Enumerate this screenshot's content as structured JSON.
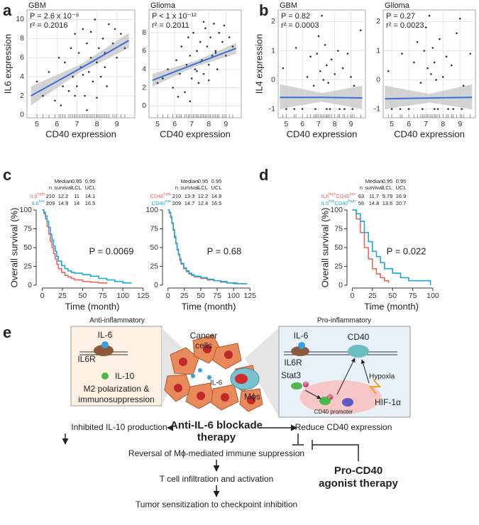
{
  "chart_data": [
    {
      "type": "scatter",
      "panel_label": "a",
      "title": "GBM",
      "x_label": "CD40 expression",
      "y_label": "IL6 expression",
      "annotations": [
        "P = 2.6 x 10⁻⁹",
        "r² = 0.2016"
      ],
      "x": [
        5.0,
        5.3,
        5.6,
        5.9,
        6.1,
        6.3,
        6.4,
        6.6,
        6.7,
        6.8,
        6.9,
        7.0,
        7.1,
        7.2,
        7.3,
        7.4,
        7.5,
        7.6,
        7.7,
        7.8,
        7.9,
        8.0,
        8.1,
        8.2,
        8.3,
        8.4,
        8.5,
        8.6,
        8.8,
        9.0,
        9.2,
        9.4,
        6.2,
        6.9,
        7.3,
        7.7,
        8.0,
        8.4,
        8.9,
        7.5
      ],
      "values": [
        3.5,
        2.0,
        4.5,
        1.5,
        6.0,
        3.0,
        5.5,
        2.5,
        7.0,
        4.0,
        8.5,
        3.0,
        6.5,
        5.0,
        9.0,
        2.0,
        7.5,
        4.5,
        6.0,
        3.5,
        10.0,
        5.5,
        7.0,
        4.0,
        8.0,
        6.5,
        3.0,
        9.5,
        7.5,
        6.0,
        8.5,
        7.0,
        1.0,
        2.0,
        4.2,
        8.7,
        1.8,
        5.0,
        9.0,
        0.5
      ],
      "color": "#333333",
      "fit": {
        "x": [
          4.7,
          7.2,
          9.6
        ],
        "values": [
          2.0,
          4.9,
          7.8
        ],
        "lower": [
          1.0,
          4.5,
          7.0
        ],
        "upper": [
          3.0,
          5.3,
          8.6
        ],
        "color": "#3a6fd8",
        "band_color": "#c4c4c4"
      },
      "xlim": [
        4.5,
        9.9
      ],
      "xticks": [
        5,
        6,
        7,
        8,
        9
      ],
      "ylim": [
        -0.3,
        11
      ],
      "yticks": [
        0,
        2,
        4,
        6,
        8,
        10
      ],
      "grid": true
    },
    {
      "type": "scatter",
      "title": "Glioma",
      "x_label": "CD40 expression",
      "annotations": [
        "P < 1 x 10⁻¹²",
        "r² = 0.2011"
      ],
      "x": [
        5.0,
        5.3,
        5.6,
        5.9,
        6.1,
        6.3,
        6.4,
        6.6,
        6.7,
        6.8,
        6.9,
        7.0,
        7.1,
        7.2,
        7.3,
        7.4,
        7.5,
        7.6,
        7.7,
        7.8,
        7.9,
        8.0,
        8.1,
        8.2,
        8.3,
        8.4,
        8.5,
        8.6,
        8.8,
        9.0,
        9.2,
        9.4,
        6.2,
        6.9,
        7.3,
        7.7,
        8.0,
        8.4,
        8.9,
        7.5
      ],
      "values": [
        2.5,
        3.0,
        4.0,
        2.0,
        5.0,
        3.5,
        6.5,
        1.5,
        4.5,
        7.5,
        5.5,
        3.0,
        8.0,
        4.0,
        6.0,
        2.5,
        7.0,
        5.0,
        3.5,
        8.5,
        6.5,
        4.5,
        7.5,
        5.5,
        9.0,
        6.0,
        4.0,
        8.0,
        7.0,
        5.5,
        7.5,
        6.5,
        1.0,
        0.5,
        3.8,
        9.2,
        2.8,
        5.8,
        8.8,
        4.8
      ],
      "color": "#333333",
      "fit": {
        "x": [
          4.7,
          7.2,
          9.6
        ],
        "values": [
          2.8,
          4.6,
          6.3
        ],
        "lower": [
          2.1,
          4.3,
          5.7
        ],
        "upper": [
          3.5,
          4.9,
          6.9
        ],
        "color": "#3a6fd8",
        "band_color": "#c4c4c4"
      },
      "xlim": [
        4.5,
        9.9
      ],
      "xticks": [
        5,
        6,
        7,
        8,
        9
      ],
      "ylim": [
        -1.3,
        10.5
      ],
      "yticks": [
        0,
        2,
        4,
        6,
        8
      ],
      "grid": true
    },
    {
      "type": "scatter",
      "panel_label": "b",
      "title": "GBM",
      "x_label": "CD40 expression",
      "y_label": "IL4 expression",
      "annotations": [
        "P = 0.82",
        "r² = 0.0003"
      ],
      "x": [
        4.8,
        5.6,
        6.3,
        6.5,
        6.7,
        6.9,
        7.0,
        7.1,
        7.2,
        7.3,
        7.4,
        7.5,
        7.6,
        7.8,
        8.0,
        8.2,
        8.5,
        8.8,
        9.0,
        9.2,
        9.6,
        5.0,
        6.0,
        6.8,
        7.5,
        8.3,
        9.1,
        5.5,
        7.7,
        8.6
      ],
      "values": [
        0.4,
        1.1,
        0.1,
        0.8,
        -0.2,
        0.9,
        1.5,
        0.3,
        2.2,
        0.0,
        1.2,
        0.5,
        -0.1,
        0.7,
        0.2,
        1.0,
        0.4,
        0.9,
        0.1,
        -0.2,
        1.7,
        -1,
        -1,
        -1,
        -1,
        -1,
        -1,
        -1,
        -1,
        -1
      ],
      "color": "#333333",
      "fit": {
        "x": [
          4.6,
          7.2,
          9.7
        ],
        "values": [
          -0.6,
          -0.6,
          -0.62
        ],
        "lower": [
          -1.0,
          -0.75,
          -1.0
        ],
        "upper": [
          -0.15,
          -0.45,
          -0.2
        ],
        "color": "#3a6fd8",
        "band_color": "#c4c4c4"
      },
      "xlim": [
        4.5,
        9.9
      ],
      "xticks": [
        5,
        6,
        7,
        8,
        9
      ],
      "ylim": [
        -1.3,
        2.4
      ],
      "yticks": [
        -1,
        0,
        1,
        2
      ],
      "grid": true
    },
    {
      "type": "scatter",
      "title": "Glioma",
      "x_label": "CD40 expression",
      "annotations": [
        "P = 0.27",
        "r² = 0.0023"
      ],
      "x": [
        4.8,
        5.6,
        6.3,
        6.5,
        6.7,
        6.9,
        7.0,
        7.1,
        7.2,
        7.3,
        7.4,
        7.5,
        7.6,
        7.8,
        8.0,
        8.2,
        8.5,
        8.8,
        9.0,
        9.2,
        9.6,
        5.0,
        6.0,
        6.8,
        7.5,
        8.3,
        9.1,
        5.5,
        7.7,
        8.6
      ],
      "values": [
        0.3,
        0.9,
        0.6,
        1.3,
        -0.1,
        1.0,
        1.8,
        0.4,
        2.2,
        0.2,
        1.1,
        0.6,
        0.0,
        1.4,
        0.1,
        0.8,
        0.5,
        1.6,
        2.1,
        -0.2,
        0.9,
        -1,
        -1,
        -1,
        -1,
        -1,
        -1,
        -1,
        -1,
        -1
      ],
      "color": "#333333",
      "fit": {
        "x": [
          4.6,
          7.2,
          9.7
        ],
        "values": [
          -0.65,
          -0.62,
          -0.6
        ],
        "lower": [
          -1.0,
          -0.78,
          -1.0
        ],
        "upper": [
          -0.2,
          -0.48,
          -0.15
        ],
        "color": "#3a6fd8",
        "band_color": "#c4c4c4"
      },
      "xlim": [
        4.5,
        9.9
      ],
      "xticks": [
        5,
        6,
        7,
        8,
        9
      ],
      "ylim": [
        -1.3,
        2.4
      ],
      "yticks": [
        -1,
        0,
        1,
        2
      ],
      "grid": true
    },
    {
      "type": "km",
      "panel_label": "c",
      "x_label": "Time (month)",
      "y_label": "Overall survival (%)",
      "annotation": "P = 0.0069",
      "columns": [
        [
          "n"
        ],
        [
          "Median",
          "survival"
        ],
        [
          "0.95",
          "LCL"
        ],
        [
          "0.95",
          "UCL"
        ]
      ],
      "series": [
        {
          "name": [
            {
              "text": "IL6"
            },
            {
              "text": "high",
              "sup": true
            }
          ],
          "color": "#f0645a",
          "stats": [
            210,
            12.2,
            11,
            14.1
          ],
          "x": [
            0,
            2,
            4,
            6,
            8,
            10,
            12,
            14,
            16,
            18,
            20,
            24,
            28,
            32,
            36,
            40,
            50,
            60,
            70,
            80
          ],
          "values": [
            100,
            95,
            88,
            78,
            68,
            58,
            50,
            42,
            35,
            28,
            22,
            17,
            13,
            11,
            9,
            7,
            5,
            4,
            3,
            2
          ]
        },
        {
          "name": [
            {
              "text": "IL6"
            },
            {
              "text": "low",
              "sup": true
            }
          ],
          "color": "#1aa9dc",
          "stats": [
            209,
            14.9,
            14,
            16.5
          ],
          "x": [
            0,
            2,
            4,
            6,
            8,
            10,
            12,
            14,
            16,
            18,
            20,
            24,
            28,
            32,
            36,
            40,
            50,
            60,
            70,
            80,
            90,
            100,
            110
          ],
          "values": [
            100,
            97,
            92,
            85,
            77,
            68,
            60,
            52,
            45,
            38,
            32,
            26,
            22,
            19,
            17,
            16,
            14,
            12,
            9,
            7,
            5,
            3,
            2
          ]
        }
      ],
      "xlim": [
        -4,
        128
      ],
      "xticks": [
        0,
        25,
        50,
        75,
        100,
        125
      ],
      "ylim": [
        0,
        100
      ],
      "yticks": [
        0,
        25,
        50,
        75,
        100
      ]
    },
    {
      "type": "km",
      "x_label": "Time (month)",
      "annotation": "P = 0.68",
      "columns": [
        [
          "n"
        ],
        [
          "Median",
          "survival"
        ],
        [
          "0.95",
          "LCL"
        ],
        [
          "0.95",
          "UCL"
        ]
      ],
      "series": [
        {
          "name": [
            {
              "text": "CD40"
            },
            {
              "text": "high",
              "sup": true
            }
          ],
          "color": "#f0645a",
          "stats": [
            210,
            13.3,
            12.2,
            14.8
          ],
          "x": [
            0,
            2,
            4,
            6,
            8,
            10,
            12,
            14,
            16,
            18,
            20,
            24,
            28,
            32,
            36,
            40,
            50,
            60,
            70,
            80,
            90,
            100,
            115
          ],
          "values": [
            100,
            96,
            90,
            82,
            73,
            63,
            55,
            47,
            40,
            33,
            28,
            22,
            18,
            15,
            13,
            11,
            9,
            7,
            6,
            4,
            3,
            2,
            1
          ]
        },
        {
          "name": [
            {
              "text": "CD40"
            },
            {
              "text": "low",
              "sup": true
            }
          ],
          "color": "#1aa9dc",
          "stats": [
            209,
            14.7,
            12.4,
            16.5
          ],
          "x": [
            0,
            2,
            4,
            6,
            8,
            10,
            12,
            14,
            16,
            18,
            20,
            24,
            28,
            32,
            36,
            40,
            50,
            60,
            70,
            80,
            90,
            105,
            120
          ],
          "values": [
            100,
            97,
            91,
            83,
            74,
            65,
            56,
            48,
            41,
            35,
            29,
            23,
            19,
            16,
            14,
            12,
            10,
            8,
            6,
            5,
            3,
            2,
            1
          ]
        }
      ],
      "xlim": [
        -4,
        128
      ],
      "xticks": [
        0,
        25,
        50,
        75,
        100,
        125
      ],
      "ylim": [
        0,
        100
      ],
      "yticks": [
        0,
        25,
        50,
        75,
        100
      ]
    },
    {
      "type": "km",
      "panel_label": "d",
      "x_label": "Time (month)",
      "y_label": "Overall survival (%)",
      "annotation": "P = 0.022",
      "columns": [
        [
          "n"
        ],
        [
          "Median",
          "survival"
        ],
        [
          "0.95",
          "LCL"
        ],
        [
          "0.95",
          "UCL"
        ]
      ],
      "series": [
        {
          "name": [
            {
              "text": "IL6"
            },
            {
              "text": "high",
              "sup": true
            },
            {
              "text": "CD40"
            },
            {
              "text": "low",
              "sup": true
            }
          ],
          "color": "#f0645a",
          "stats": [
            63,
            11.7,
            9.79,
            16.9
          ],
          "x": [
            0,
            5,
            10,
            15,
            20,
            25,
            30,
            35,
            40,
            45
          ],
          "values": [
            100,
            88,
            70,
            50,
            35,
            22,
            15,
            10,
            6,
            3
          ]
        },
        {
          "name": [
            {
              "text": "IL6"
            },
            {
              "text": "low",
              "sup": true
            },
            {
              "text": "CD40"
            },
            {
              "text": "high",
              "sup": true
            }
          ],
          "color": "#1aa9dc",
          "stats": [
            56,
            14.8,
            13.6,
            20.7
          ],
          "x": [
            0,
            5,
            10,
            15,
            20,
            25,
            30,
            35,
            40,
            50,
            60,
            70,
            80,
            97
          ],
          "values": [
            100,
            95,
            85,
            70,
            58,
            45,
            38,
            30,
            22,
            16,
            10,
            6,
            6,
            0
          ]
        }
      ],
      "xlim": [
        -3,
        100
      ],
      "xticks": [
        0,
        25,
        50,
        75,
        100
      ],
      "ylim": [
        0,
        100
      ],
      "yticks": [
        0,
        25,
        50,
        75,
        100
      ]
    }
  ],
  "diagram": {
    "panel_label": "e",
    "left_box": {
      "title": "Anti-inflammatory",
      "ligand": "IL-6",
      "receptor": "IL6R",
      "product": "IL-10",
      "outcome": [
        "M2 polarization &",
        "immunosuppression"
      ]
    },
    "center": {
      "cells": [
        "Cancer",
        "cells"
      ],
      "ligand": "IL-6",
      "macrophages": "Mϕs"
    },
    "right_box": {
      "title": "Pro-inflammatory",
      "ligand": "IL-6",
      "target": "CD40",
      "receptor": "IL6R",
      "transducer": "Stat3",
      "phospho": "P",
      "stimulus": "Hypoxia",
      "factor": "HIF-1α",
      "promoter": "CD40 promoter"
    },
    "flow": {
      "left": "Inhibited IL-10 production",
      "therapy": [
        "Anti-IL-6 blockade",
        "therapy"
      ],
      "right": "Reduce CD40 expression",
      "step1": "Reversal of Mϕ-mediated immune suppression",
      "step2": "T cell infiltration and activation",
      "step3": "Tumor sensitization to checkpoint inhibition",
      "agonist": [
        "Pro-CD40",
        "agonist therapy"
      ]
    }
  }
}
